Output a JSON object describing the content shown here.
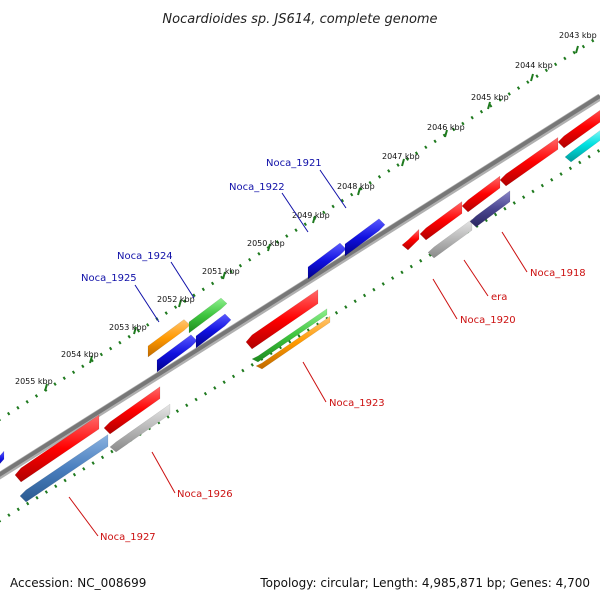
{
  "title": "Nocardioides sp. JS614, complete genome",
  "footer": {
    "accession": "Accession: NC_008699",
    "stats": "Topology: circular; Length: 4,985,871 bp; Genes: 4,700"
  },
  "colors": {
    "backbone": "#808080",
    "tick_dots": "#1f7a1f",
    "label_blue": "#1010a8",
    "label_red": "#cc1010",
    "red": "#ff0000",
    "blue": "#1010e0",
    "green": "#3ec43e",
    "orange": "#ff9900",
    "steelblue": "#4a7fbf",
    "gray": "#b8b8b8",
    "purple": "#4a4690",
    "cyan": "#00e0e0"
  },
  "ticks": [
    {
      "label": "2043 kbp"
    },
    {
      "label": "2044 kbp"
    },
    {
      "label": "2045 kbp"
    },
    {
      "label": "2046 kbp"
    },
    {
      "label": "2047 kbp"
    },
    {
      "label": "2048 kbp"
    },
    {
      "label": "2049 kbp"
    },
    {
      "label": "2050 kbp"
    },
    {
      "label": "2051 kbp"
    },
    {
      "label": "2052 kbp"
    },
    {
      "label": "2053 kbp"
    },
    {
      "label": "2054 kbp"
    },
    {
      "label": "2055 kbp"
    }
  ],
  "gene_labels": [
    {
      "text": "Noca_1921",
      "strand": "forward"
    },
    {
      "text": "Noca_1922",
      "strand": "forward"
    },
    {
      "text": "Noca_1924",
      "strand": "forward"
    },
    {
      "text": "Noca_1925",
      "strand": "forward"
    },
    {
      "text": "Noca_1918",
      "strand": "reverse"
    },
    {
      "text": "era",
      "strand": "reverse"
    },
    {
      "text": "Noca_1920",
      "strand": "reverse"
    },
    {
      "text": "Noca_1923",
      "strand": "reverse"
    },
    {
      "text": "Noca_1926",
      "strand": "reverse"
    },
    {
      "text": "Noca_1927",
      "strand": "reverse"
    }
  ]
}
